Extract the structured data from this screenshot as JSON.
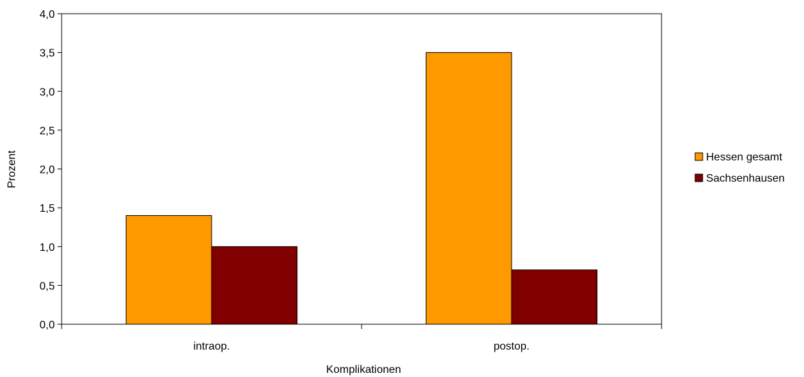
{
  "chart_data": {
    "type": "bar",
    "categories": [
      "intraop.",
      "postop."
    ],
    "series": [
      {
        "name": "Hessen gesamt",
        "color": "#FF9900",
        "values": [
          1.4,
          3.5
        ]
      },
      {
        "name": "Sachsenhausen",
        "color": "#800000",
        "values": [
          1.0,
          0.7
        ]
      }
    ],
    "xlabel": "Komplikationen",
    "ylabel": "Prozent",
    "ylim": [
      0,
      4.0
    ],
    "yticks": [
      "0,0",
      "0,5",
      "1,0",
      "1,5",
      "2,0",
      "2,5",
      "3,0",
      "3,5",
      "4,0"
    ],
    "grid": false,
    "legend_position": "right"
  }
}
